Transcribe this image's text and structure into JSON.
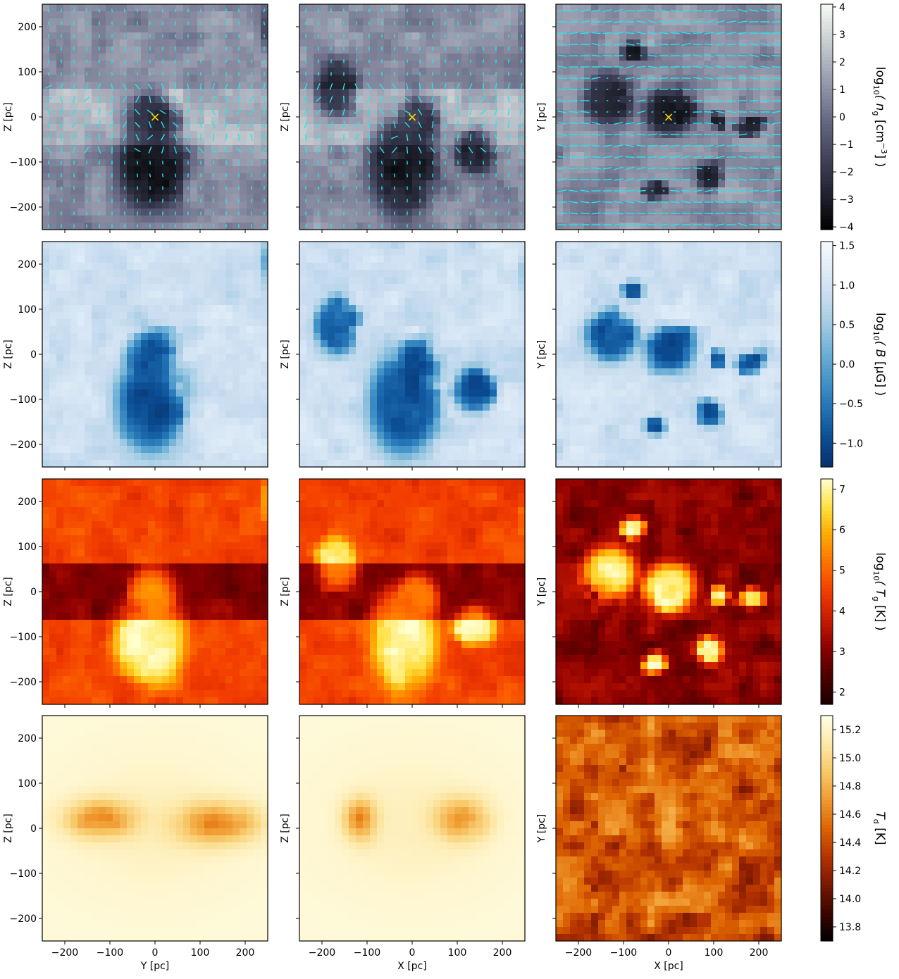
{
  "chart_data": {
    "type": "heatmap",
    "layout": {
      "rows": 4,
      "cols": 3
    },
    "axis_range_pc": [
      -250,
      250
    ],
    "ticks": [
      "-200",
      "-100",
      "0",
      "100",
      "200"
    ],
    "tick_values": [
      -200,
      -100,
      0,
      100,
      200
    ],
    "columns": [
      {
        "xlabel": "Y [pc]",
        "ylabel": "Z [pc]"
      },
      {
        "xlabel": "X [pc]",
        "ylabel": "Z [pc]"
      },
      {
        "xlabel": "X [pc]",
        "ylabel": "Y [pc]"
      }
    ],
    "marker": {
      "symbol": "×",
      "x": 0,
      "y": 0,
      "color": "#ffe000"
    },
    "vector_color": "#22e6ee",
    "rows": [
      {
        "quantity": "gas-density",
        "colorbar_label_pre": "log",
        "colorbar_label_sub": "10",
        "colorbar_label_post": "( n",
        "colorbar_label_tail": "g",
        "colorbar_label_unit": " [cm",
        "colorbar_label_exp": "−3",
        "colorbar_label_end": "] )",
        "range": [
          -4.1,
          4.1
        ],
        "ticks": [
          4,
          3,
          2,
          1,
          0,
          -1,
          -2,
          -3,
          -4
        ],
        "tick_labels": [
          "4",
          "3",
          "2",
          "1",
          "0",
          "−1",
          "−2",
          "−3",
          "−4"
        ],
        "colors": [
          "#000000",
          "#1a1b24",
          "#34354a",
          "#4d5068",
          "#6a6d86",
          "#8e92a6",
          "#b0b6c0",
          "#d4dad8",
          "#f8fbf4"
        ]
      },
      {
        "quantity": "magnetic-field",
        "colorbar_label_pre": "log",
        "colorbar_label_sub": "10",
        "colorbar_label_post": "( B",
        "colorbar_label_tail": "",
        "colorbar_label_unit": " [μG]",
        "colorbar_label_exp": "",
        "colorbar_label_end": " )",
        "range": [
          -1.3,
          1.55
        ],
        "ticks": [
          1.5,
          1.0,
          0.5,
          0.0,
          -0.5,
          -1.0
        ],
        "tick_labels": [
          "1.5",
          "1.0",
          "0.5",
          "0.0",
          "−0.5",
          "−1.0"
        ],
        "colors": [
          "#08306b",
          "#0b4c92",
          "#2171b5",
          "#4292c6",
          "#6baed6",
          "#9ecae1",
          "#c6dbef",
          "#deebf7",
          "#f7fbff"
        ]
      },
      {
        "quantity": "gas-temperature",
        "colorbar_label_pre": "log",
        "colorbar_label_sub": "10",
        "colorbar_label_post": "( T",
        "colorbar_label_tail": "g",
        "colorbar_label_unit": " [K]",
        "colorbar_label_exp": "",
        "colorbar_label_end": " )",
        "range": [
          1.7,
          7.25
        ],
        "ticks": [
          7,
          6,
          5,
          4,
          3,
          2
        ],
        "tick_labels": [
          "7",
          "6",
          "5",
          "4",
          "3",
          "2"
        ],
        "colors": [
          "#1a0000",
          "#4d0000",
          "#8a0000",
          "#c81a00",
          "#f23c00",
          "#ff7000",
          "#ffa800",
          "#ffe040",
          "#ffffd0"
        ]
      },
      {
        "quantity": "dust-temperature",
        "colorbar_label_pre": "",
        "colorbar_label_sub": "",
        "colorbar_label_post": "T",
        "colorbar_label_tail": "d",
        "colorbar_label_unit": " [K]",
        "colorbar_label_exp": "",
        "colorbar_label_end": "",
        "range": [
          13.7,
          15.3
        ],
        "ticks": [
          15.2,
          15.0,
          14.8,
          14.6,
          14.4,
          14.2,
          14.0,
          13.8
        ],
        "tick_labels": [
          "15.2",
          "15.0",
          "14.8",
          "14.6",
          "14.4",
          "14.2",
          "14.0",
          "13.8"
        ],
        "colors": [
          "#000000",
          "#3a0500",
          "#7a1800",
          "#b53300",
          "#dd6400",
          "#f09a30",
          "#f8c868",
          "#fde8a8",
          "#ffffe8"
        ]
      }
    ]
  }
}
